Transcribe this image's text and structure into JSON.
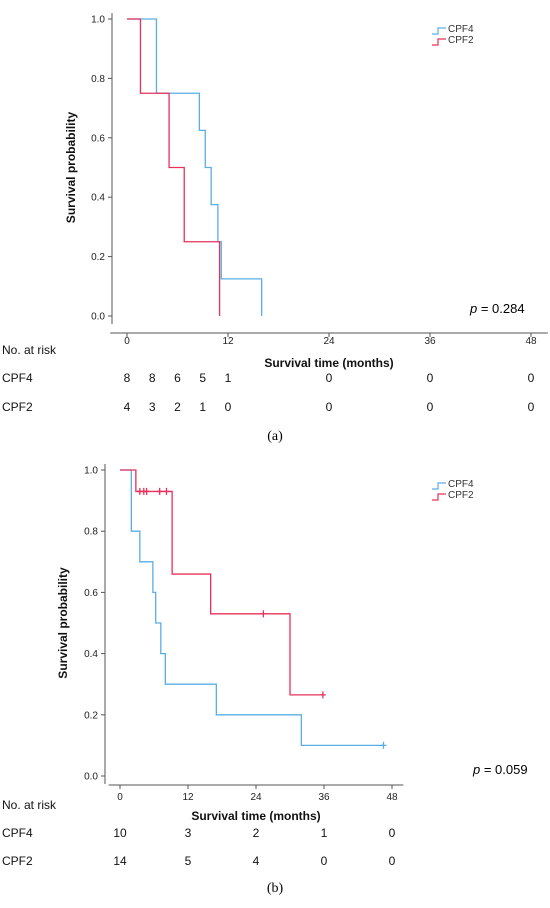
{
  "colors": {
    "CPF4": "#5aaee6",
    "CPF2": "#e8305a"
  },
  "chart_data": [
    {
      "type": "line",
      "panel_label": "(a)",
      "xlabel": "Survival time (months)",
      "ylabel": "Survival probability",
      "xticks": [
        "0",
        "12",
        "24",
        "36",
        "48"
      ],
      "yticks": [
        "0.0",
        "0.2",
        "0.4",
        "0.6",
        "0.8",
        "1.0"
      ],
      "xlim": [
        -2,
        50
      ],
      "ylim": [
        0,
        1
      ],
      "legend_position": "top-right",
      "p_value": {
        "label": "p",
        "value": " = 0.284"
      },
      "series": [
        {
          "name": "CPF4",
          "color": "#5aaee6",
          "steps": [
            [
              0,
              1.0
            ],
            [
              3.5,
              0.75
            ],
            [
              8.6,
              0.625
            ],
            [
              9.3,
              0.5
            ],
            [
              10.0,
              0.375
            ],
            [
              10.8,
              0.25
            ],
            [
              11.2,
              0.125
            ],
            [
              16.0,
              0.0
            ]
          ],
          "censored": []
        },
        {
          "name": "CPF2",
          "color": "#e8305a",
          "steps": [
            [
              0,
              1.0
            ],
            [
              1.6,
              0.75
            ],
            [
              5.0,
              0.5
            ],
            [
              6.8,
              0.25
            ],
            [
              11.0,
              0.0
            ]
          ],
          "censored": []
        }
      ],
      "risk_table": {
        "title": "No. at risk",
        "positions": [
          0,
          3,
          6,
          9,
          12,
          24,
          36,
          48
        ],
        "rows": [
          {
            "name": "CPF4",
            "values": [
              "8",
              "8",
              "6",
              "5",
              "1",
              "0",
              "0",
              "0"
            ]
          },
          {
            "name": "CPF2",
            "values": [
              "4",
              "3",
              "2",
              "1",
              "0",
              "0",
              "0",
              "0"
            ]
          }
        ]
      }
    },
    {
      "type": "line",
      "panel_label": "(b)",
      "xlabel": "Survival time (months)",
      "ylabel": "Survival probability",
      "xticks": [
        "0",
        "12",
        "24",
        "36",
        "48"
      ],
      "yticks": [
        "0.0",
        "0.2",
        "0.4",
        "0.6",
        "0.8",
        "1.0"
      ],
      "xlim": [
        -2,
        50
      ],
      "ylim": [
        0,
        1
      ],
      "legend_position": "top-right",
      "p_value": {
        "label": "p",
        "value": " = 0.059"
      },
      "series": [
        {
          "name": "CPF4",
          "color": "#5aaee6",
          "steps": [
            [
              0,
              1.0
            ],
            [
              2.0,
              0.8
            ],
            [
              3.5,
              0.7
            ],
            [
              5.8,
              0.6
            ],
            [
              6.3,
              0.5
            ],
            [
              7.2,
              0.4
            ],
            [
              8.0,
              0.3
            ],
            [
              17.0,
              0.2
            ],
            [
              32.0,
              0.1
            ],
            [
              46.5,
              0.1
            ]
          ],
          "censored": [
            [
              46.5,
              0.1
            ]
          ]
        },
        {
          "name": "CPF2",
          "color": "#e8305a",
          "steps": [
            [
              0,
              1.0
            ],
            [
              2.8,
              0.93
            ],
            [
              9.2,
              0.66
            ],
            [
              16.0,
              0.53
            ],
            [
              30.0,
              0.265
            ],
            [
              35.8,
              0.265
            ]
          ],
          "censored": [
            [
              3.5,
              0.93
            ],
            [
              4.2,
              0.93
            ],
            [
              4.7,
              0.93
            ],
            [
              7.0,
              0.93
            ],
            [
              8.2,
              0.93
            ],
            [
              25.3,
              0.53
            ],
            [
              35.8,
              0.265
            ]
          ]
        }
      ],
      "risk_table": {
        "title": "No. at risk",
        "positions": [
          0,
          12,
          24,
          36,
          48
        ],
        "rows": [
          {
            "name": "CPF4",
            "values": [
              "10",
              "3",
              "2",
              "1",
              "0"
            ]
          },
          {
            "name": "CPF2",
            "values": [
              "14",
              "5",
              "4",
              "0",
              "0"
            ]
          }
        ]
      }
    }
  ]
}
